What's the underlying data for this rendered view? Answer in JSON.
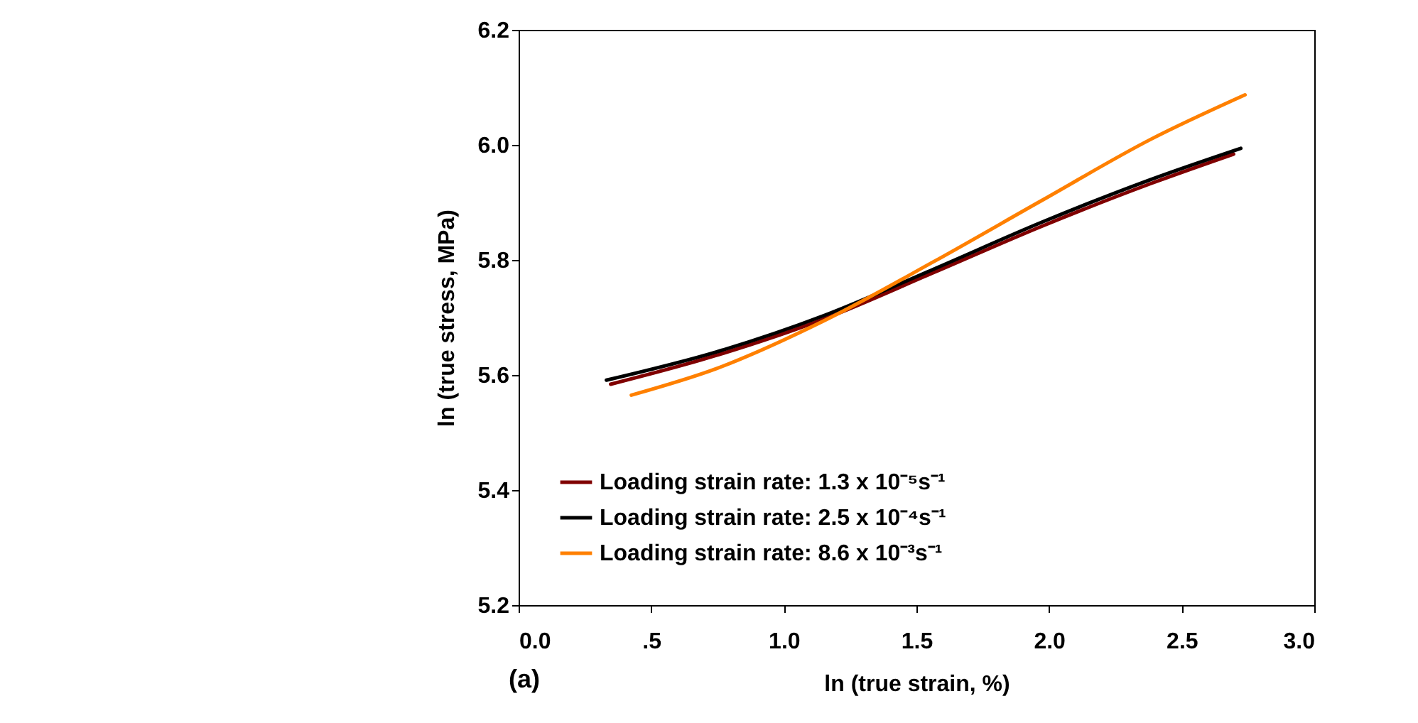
{
  "chart_data": {
    "type": "line",
    "xlabel": "ln (true strain, %)",
    "ylabel": "ln (true stress, MPa)",
    "annotations": [
      "(a)"
    ],
    "xlim": [
      0,
      3
    ],
    "xticks": [
      {
        "value": 0,
        "label": "0.0"
      },
      {
        "value": 0.5,
        "label": ".5"
      },
      {
        "value": 1,
        "label": "1.0"
      },
      {
        "value": 1.5,
        "label": "1.5"
      },
      {
        "value": 2,
        "label": "2.0"
      },
      {
        "value": 2.5,
        "label": "2.5"
      },
      {
        "value": 3,
        "label": "3.0"
      }
    ],
    "ylim": [
      5.2,
      6.2
    ],
    "yticks": [
      {
        "value": 5.2,
        "label": "5.2"
      },
      {
        "value": 5.4,
        "label": "5.4"
      },
      {
        "value": 5.6,
        "label": "5.6"
      },
      {
        "value": 5.8,
        "label": "5.8"
      },
      {
        "value": 6.0,
        "label": "6.0"
      },
      {
        "value": 6.2,
        "label": "6.2"
      }
    ],
    "grid": false,
    "legend": "bottom left",
    "marker": "none",
    "line_style": "solid",
    "series": [
      {
        "name": "Loading strain rate: 1.3 x 10⁻⁵s⁻¹",
        "color": "#800000",
        "x": [
          0.347,
          0.745,
          1.155,
          1.565,
          1.975,
          2.385,
          2.696
        ],
        "values": [
          5.584,
          5.634,
          5.698,
          5.778,
          5.859,
          5.933,
          5.984
        ]
      },
      {
        "name": "Loading strain rate: 2.5 x 10⁻⁴s⁻¹",
        "color": "#000000",
        "x": [
          0.331,
          0.745,
          1.155,
          1.565,
          1.975,
          2.385,
          2.723
        ],
        "values": [
          5.591,
          5.64,
          5.704,
          5.784,
          5.866,
          5.94,
          5.994
        ]
      },
      {
        "name": "Loading strain rate: 8.6 x 10⁻³s⁻¹",
        "color": "#ff8000",
        "x": [
          0.425,
          0.745,
          1.155,
          1.565,
          1.975,
          2.385,
          2.739
        ],
        "values": [
          5.565,
          5.611,
          5.695,
          5.797,
          5.904,
          6.01,
          6.087
        ]
      }
    ]
  }
}
